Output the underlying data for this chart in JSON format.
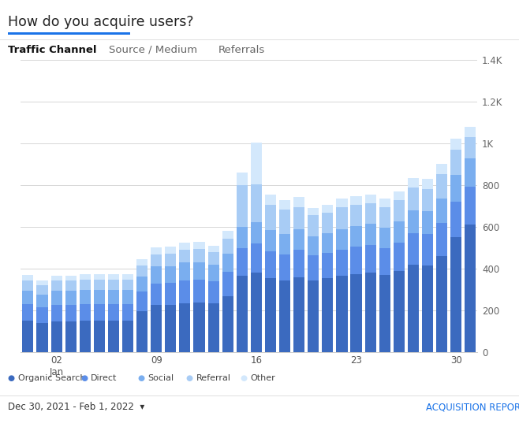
{
  "title": "How do you acquire users?",
  "tab_active": "Traffic Channel",
  "tab_inactive": [
    "Source / Medium",
    "Referrals"
  ],
  "date_range": "Dec 30, 2021 - Feb 1, 2022",
  "report_link": "ACQUISITION REPORT",
  "ylim": [
    0,
    1400
  ],
  "yticks": [
    0,
    200,
    400,
    600,
    800,
    1000,
    1200,
    1400
  ],
  "ytick_labels": [
    "0",
    "200",
    "400",
    "600",
    "800",
    "1K",
    "1.2K",
    "1.4K"
  ],
  "colors": {
    "organic_search": "#3b6abf",
    "direct": "#5b8de8",
    "social": "#7aaeef",
    "referral": "#a8ccf5",
    "other": "#d3e8fc",
    "background": "#ffffff",
    "grid": "#d0d0d0",
    "title_blue_line": "#1a73e8"
  },
  "legend": [
    "Organic Search",
    "Direct",
    "Social",
    "Referral",
    "Other"
  ],
  "organic_search": [
    150,
    140,
    148,
    148,
    150,
    150,
    150,
    150,
    195,
    225,
    228,
    235,
    238,
    235,
    270,
    365,
    380,
    355,
    345,
    360,
    345,
    355,
    365,
    375,
    380,
    370,
    390,
    420,
    415,
    460,
    550,
    610
  ],
  "direct": [
    80,
    75,
    80,
    80,
    82,
    82,
    82,
    82,
    95,
    105,
    105,
    110,
    110,
    105,
    115,
    135,
    140,
    130,
    125,
    130,
    118,
    120,
    125,
    130,
    135,
    130,
    135,
    150,
    150,
    158,
    172,
    182
  ],
  "social": [
    65,
    60,
    65,
    65,
    65,
    65,
    65,
    65,
    72,
    80,
    80,
    84,
    84,
    80,
    88,
    100,
    102,
    100,
    96,
    98,
    92,
    94,
    97,
    98,
    100,
    96,
    100,
    110,
    110,
    118,
    126,
    138
  ],
  "referral": [
    50,
    45,
    50,
    50,
    50,
    50,
    50,
    50,
    55,
    60,
    60,
    62,
    62,
    58,
    70,
    200,
    180,
    120,
    118,
    108,
    100,
    100,
    108,
    104,
    100,
    100,
    104,
    108,
    108,
    116,
    120,
    100
  ],
  "other": [
    25,
    22,
    25,
    25,
    25,
    25,
    25,
    25,
    28,
    32,
    32,
    34,
    34,
    32,
    38,
    60,
    200,
    48,
    44,
    48,
    36,
    36,
    40,
    40,
    40,
    40,
    42,
    46,
    46,
    50,
    54,
    48
  ]
}
